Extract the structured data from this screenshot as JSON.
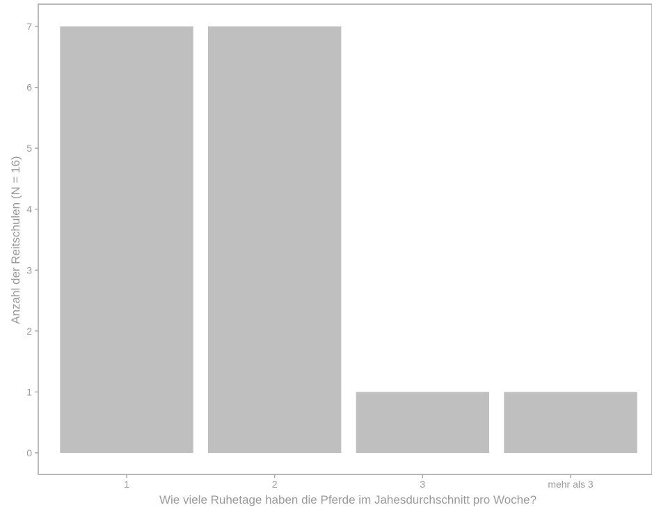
{
  "chart_data": {
    "type": "bar",
    "title": "",
    "xlabel": "Wie viele Ruhetage haben die Pferde im Jahesdurchschnitt pro Woche?",
    "ylabel": "Anzahl der Reitschulen (N = 16)",
    "categories": [
      "1",
      "2",
      "3",
      "mehr als 3"
    ],
    "values": [
      7,
      7,
      1,
      1
    ],
    "ylim": [
      0,
      7.4
    ],
    "yticks": [
      0,
      1,
      2,
      3,
      4,
      5,
      6,
      7
    ],
    "grid": false,
    "legend": "none",
    "colors": {
      "bar": "#bfbfbf",
      "axis": "#a6a6a6",
      "text": "#9a9a9a",
      "background": "#ffffff"
    }
  }
}
